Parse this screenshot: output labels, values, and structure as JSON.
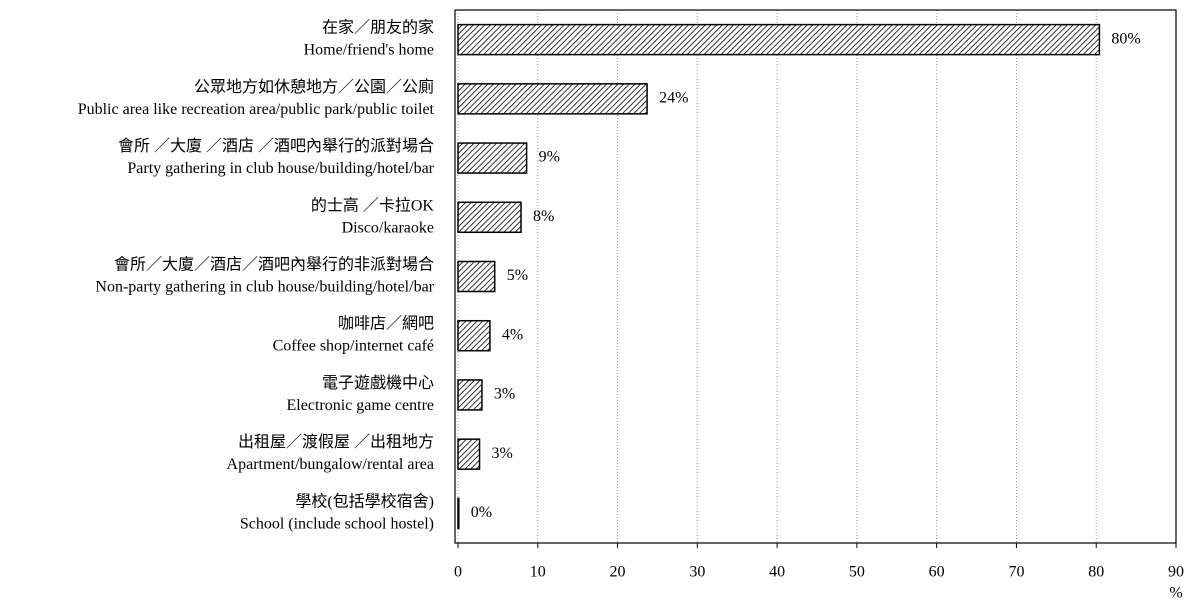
{
  "chart_data": {
    "type": "barh",
    "categories": [
      [
        "在家／朋友的家",
        "Home/friend's home"
      ],
      [
        "公眾地方如休憩地方／公園／公廁",
        "Public area like recreation area/public park/public toilet"
      ],
      [
        "會所 ／大廈 ／酒店 ／酒吧內舉行的派對場合",
        "Party gathering in club house/building/hotel/bar"
      ],
      [
        "的士高 ／卡拉OK",
        "Disco/karaoke"
      ],
      [
        "會所／大廈／酒店／酒吧內舉行的非派對場合",
        "Non-party gathering in club house/building/hotel/bar"
      ],
      [
        "咖啡店／網吧",
        "Coffee shop/internet café"
      ],
      [
        "電子遊戲機中心",
        "Electronic game centre"
      ],
      [
        "出租屋／渡假屋 ／出租地方",
        "Apartment/bungalow/rental area"
      ],
      [
        "學校(包括學校宿舍)",
        "School (include school hostel)"
      ]
    ],
    "values": [
      80.4,
      23.7,
      8.6,
      7.9,
      4.6,
      4.0,
      3.0,
      2.7,
      0.1
    ],
    "value_labels": [
      "80%",
      "24%",
      "9%",
      "8%",
      "5%",
      "4%",
      "3%",
      "3%",
      "0%"
    ],
    "xlabel": "%",
    "xlim": [
      0,
      90
    ],
    "xticks": [
      0,
      10,
      20,
      30,
      40,
      50,
      60,
      70,
      80,
      90
    ],
    "grid": true,
    "color": "#000000"
  }
}
